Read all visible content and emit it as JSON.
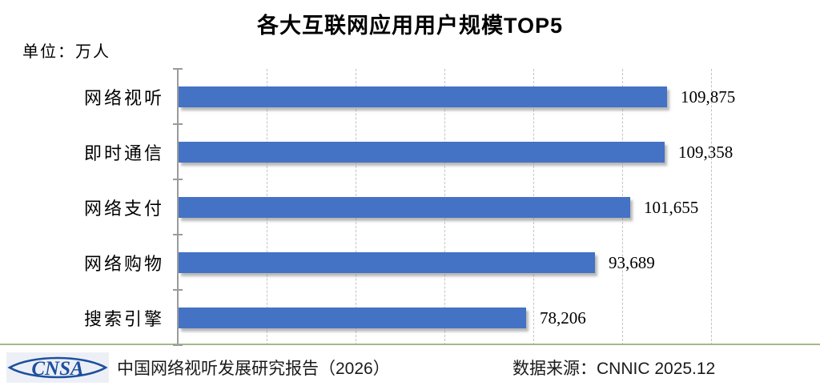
{
  "title": "各大互联网应用用户规模TOP5",
  "unit_label": "单位：万人",
  "chart_data": {
    "type": "bar",
    "orientation": "horizontal",
    "title": "各大互联网应用用户规模TOP5",
    "unit": "万人",
    "categories": [
      "网络视听",
      "即时通信",
      "网络支付",
      "网络购物",
      "搜索引擎"
    ],
    "values": [
      109875,
      109358,
      101655,
      93689,
      78206
    ],
    "value_labels": [
      "109,875",
      "109,358",
      "101,655",
      "93,689",
      "78,206"
    ],
    "xlabel": "",
    "ylabel": "",
    "xlim": [
      0,
      120000
    ],
    "gridline_interval": 20000,
    "grid": "vertical-dashed",
    "legend": "none",
    "bar_color": "#4472C4",
    "gridline_color": "#c3c3c3",
    "axis_color": "#9b9b9b"
  },
  "footer": {
    "logo_text": "CNSA",
    "logo_color": "#1d4f9e",
    "report_label": "中国网络视听发展研究报告（2026）",
    "source_label": "数据来源：CNNIC 2025.12"
  }
}
